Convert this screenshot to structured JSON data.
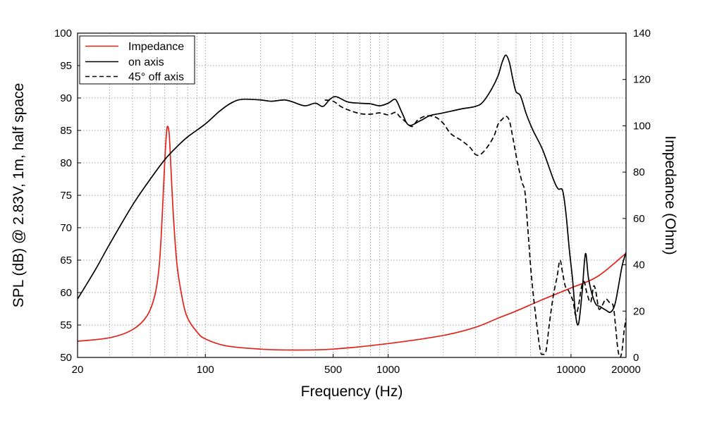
{
  "chart_data": {
    "type": "line",
    "xlabel": "Frequency (Hz)",
    "ylabel": "SPL (dB) @ 2.83V, 1m, half space",
    "y2label": "Impedance (Ohm)",
    "xscale": "log",
    "xlim": [
      20,
      20000
    ],
    "ylim": [
      50,
      100
    ],
    "y2lim": [
      0,
      140
    ],
    "grid": true,
    "legend_position": "top-left",
    "x_ticks": [
      {
        "value": 20,
        "label": "20"
      },
      {
        "value": 100,
        "label": "100"
      },
      {
        "value": 500,
        "label": "500"
      },
      {
        "value": 1000,
        "label": "1000"
      },
      {
        "value": 10000,
        "label": "10000"
      },
      {
        "value": 20000,
        "label": "20000"
      }
    ],
    "y_ticks": [
      {
        "value": 50,
        "label": "50"
      },
      {
        "value": 55,
        "label": "55"
      },
      {
        "value": 60,
        "label": "60"
      },
      {
        "value": 65,
        "label": "65"
      },
      {
        "value": 70,
        "label": "70"
      },
      {
        "value": 75,
        "label": "75"
      },
      {
        "value": 80,
        "label": "80"
      },
      {
        "value": 85,
        "label": "85"
      },
      {
        "value": 90,
        "label": "90"
      },
      {
        "value": 95,
        "label": "95"
      },
      {
        "value": 100,
        "label": "100"
      }
    ],
    "y2_ticks": [
      {
        "value": 0,
        "label": "0"
      },
      {
        "value": 20,
        "label": "20"
      },
      {
        "value": 40,
        "label": "40"
      },
      {
        "value": 60,
        "label": "60"
      },
      {
        "value": 80,
        "label": "80"
      },
      {
        "value": 100,
        "label": "100"
      },
      {
        "value": 120,
        "label": "120"
      },
      {
        "value": 140,
        "label": "140"
      }
    ],
    "series": [
      {
        "name": "Impedance",
        "axis": "right",
        "color": "#e32219",
        "dash": "solid",
        "points": [
          [
            20,
            7
          ],
          [
            30,
            8.5
          ],
          [
            40,
            12
          ],
          [
            48,
            18
          ],
          [
            53,
            27
          ],
          [
            56,
            40
          ],
          [
            58,
            60
          ],
          [
            60,
            85
          ],
          [
            61.5,
            98
          ],
          [
            62.5,
            99.5
          ],
          [
            63.5,
            96
          ],
          [
            65,
            80
          ],
          [
            67,
            60
          ],
          [
            70,
            40
          ],
          [
            75,
            25
          ],
          [
            80,
            17
          ],
          [
            90,
            11
          ],
          [
            100,
            8
          ],
          [
            130,
            5
          ],
          [
            200,
            3.6
          ],
          [
            300,
            3.2
          ],
          [
            500,
            3.6
          ],
          [
            1000,
            6
          ],
          [
            2000,
            9.5
          ],
          [
            3000,
            13
          ],
          [
            4000,
            17
          ],
          [
            5000,
            20
          ],
          [
            7000,
            25
          ],
          [
            10000,
            30
          ],
          [
            14000,
            35
          ],
          [
            20000,
            45
          ]
        ]
      },
      {
        "name": "on axis",
        "axis": "left",
        "color": "#000000",
        "dash": "solid",
        "points": [
          [
            20,
            59
          ],
          [
            25,
            63.5
          ],
          [
            30,
            67.5
          ],
          [
            40,
            73.5
          ],
          [
            50,
            77.5
          ],
          [
            60,
            80.5
          ],
          [
            70,
            82.5
          ],
          [
            80,
            84
          ],
          [
            100,
            86
          ],
          [
            120,
            88
          ],
          [
            140,
            89.3
          ],
          [
            160,
            89.8
          ],
          [
            200,
            89.7
          ],
          [
            230,
            89.5
          ],
          [
            270,
            89.7
          ],
          [
            300,
            89.4
          ],
          [
            350,
            88.8
          ],
          [
            400,
            89.2
          ],
          [
            440,
            88.7
          ],
          [
            480,
            89.8
          ],
          [
            520,
            90.2
          ],
          [
            600,
            89.4
          ],
          [
            700,
            89.2
          ],
          [
            800,
            89.1
          ],
          [
            900,
            88.8
          ],
          [
            1000,
            89.2
          ],
          [
            1080,
            89.8
          ],
          [
            1120,
            89.4
          ],
          [
            1200,
            87.5
          ],
          [
            1300,
            85.8
          ],
          [
            1500,
            86.5
          ],
          [
            1700,
            87.3
          ],
          [
            2000,
            87.7
          ],
          [
            2500,
            88.3
          ],
          [
            3000,
            88.7
          ],
          [
            3300,
            89.4
          ],
          [
            3700,
            91.5
          ],
          [
            4000,
            93.5
          ],
          [
            4200,
            95.5
          ],
          [
            4400,
            96.6
          ],
          [
            4600,
            95.5
          ],
          [
            4800,
            93
          ],
          [
            5000,
            91
          ],
          [
            5300,
            90.3
          ],
          [
            5700,
            87.5
          ],
          [
            6200,
            85
          ],
          [
            7000,
            82
          ],
          [
            8000,
            77.5
          ],
          [
            8500,
            76
          ],
          [
            9000,
            75.7
          ],
          [
            9400,
            72
          ],
          [
            9800,
            66.5
          ],
          [
            10200,
            62
          ],
          [
            10600,
            56.5
          ],
          [
            11000,
            55.2
          ],
          [
            11500,
            60
          ],
          [
            12000,
            66
          ],
          [
            12500,
            62
          ],
          [
            13500,
            58.5
          ],
          [
            14500,
            57.8
          ],
          [
            15500,
            57.3
          ],
          [
            16500,
            57
          ],
          [
            17500,
            58.5
          ],
          [
            19000,
            64
          ],
          [
            20000,
            66.2
          ]
        ]
      },
      {
        "name": "45° off axis",
        "axis": "left",
        "color": "#000000",
        "dash": "dashed",
        "points": [
          [
            450,
            89.7
          ],
          [
            500,
            89.5
          ],
          [
            550,
            88.7
          ],
          [
            600,
            88.2
          ],
          [
            700,
            87.6
          ],
          [
            800,
            87.5
          ],
          [
            900,
            87.7
          ],
          [
            1000,
            87.4
          ],
          [
            1100,
            87.8
          ],
          [
            1150,
            87.2
          ],
          [
            1250,
            86.3
          ],
          [
            1350,
            85.6
          ],
          [
            1450,
            86.6
          ],
          [
            1600,
            87.2
          ],
          [
            1800,
            87.1
          ],
          [
            2000,
            86.1
          ],
          [
            2200,
            84.5
          ],
          [
            2500,
            83.5
          ],
          [
            2800,
            82.4
          ],
          [
            3000,
            81.3
          ],
          [
            3200,
            81.3
          ],
          [
            3500,
            82.5
          ],
          [
            3800,
            84.2
          ],
          [
            4000,
            86
          ],
          [
            4200,
            86.7
          ],
          [
            4400,
            87.2
          ],
          [
            4600,
            86.5
          ],
          [
            4800,
            84
          ],
          [
            5100,
            80
          ],
          [
            5400,
            77
          ],
          [
            5600,
            75.5
          ],
          [
            5800,
            70
          ],
          [
            6100,
            62
          ],
          [
            6500,
            55
          ],
          [
            6800,
            51
          ],
          [
            7000,
            50.5
          ],
          [
            7300,
            51
          ],
          [
            7600,
            55
          ],
          [
            8000,
            59.5
          ],
          [
            8400,
            62.5
          ],
          [
            8700,
            65
          ],
          [
            9000,
            63
          ],
          [
            9300,
            61
          ],
          [
            9600,
            60.5
          ],
          [
            10000,
            59.5
          ],
          [
            10300,
            58.5
          ],
          [
            10600,
            56.5
          ],
          [
            11000,
            58
          ],
          [
            11400,
            60.8
          ],
          [
            11800,
            61.7
          ],
          [
            12200,
            60
          ],
          [
            12800,
            58.5
          ],
          [
            13300,
            61
          ],
          [
            13700,
            60
          ],
          [
            14200,
            57.5
          ],
          [
            14800,
            58
          ],
          [
            15500,
            59
          ],
          [
            16200,
            58.5
          ],
          [
            17000,
            58
          ],
          [
            17500,
            55
          ],
          [
            18000,
            51.5
          ],
          [
            18500,
            50
          ],
          [
            19000,
            51
          ],
          [
            19500,
            54
          ],
          [
            20000,
            56
          ]
        ]
      }
    ]
  }
}
